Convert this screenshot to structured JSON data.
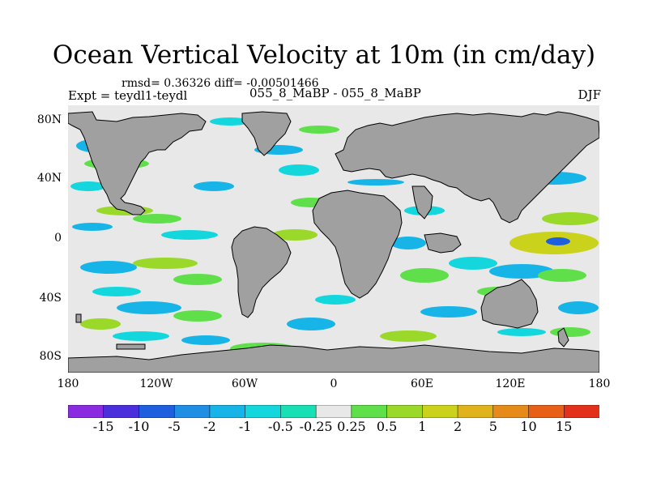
{
  "title": "Ocean Vertical Velocity at 10m (in cm/day)",
  "stats": "rmsd= 0.36326 diff= -0.00501466",
  "expt_label": "Expt = teydl1-teydl",
  "case_label": "055_8_MaBP - 055_8_MaBP",
  "season": "DJF",
  "lat_ticks": [
    "80N",
    "40N",
    "0",
    "40S",
    "80S"
  ],
  "lon_ticks": [
    "180",
    "120W",
    "60W",
    "0",
    "60E",
    "120E",
    "180"
  ],
  "colorbar": {
    "levels": [
      "-15",
      "-10",
      "-5",
      "-2",
      "-1",
      "-0.5",
      "-0.25",
      "0.25",
      "0.5",
      "1",
      "2",
      "5",
      "10",
      "15"
    ],
    "colors": [
      "#8a2be2",
      "#4b2fdc",
      "#1e5fe0",
      "#1f8fe6",
      "#17b4e8",
      "#14d7de",
      "#19e0b4",
      "#e8e8e8",
      "#5fe04a",
      "#9ad82a",
      "#cbd21c",
      "#e0b21b",
      "#e68a1a",
      "#e86018",
      "#e2301a"
    ]
  },
  "colors": {
    "land": "#a0a0a0",
    "neutral_ocean": "#e8e8e8"
  }
}
